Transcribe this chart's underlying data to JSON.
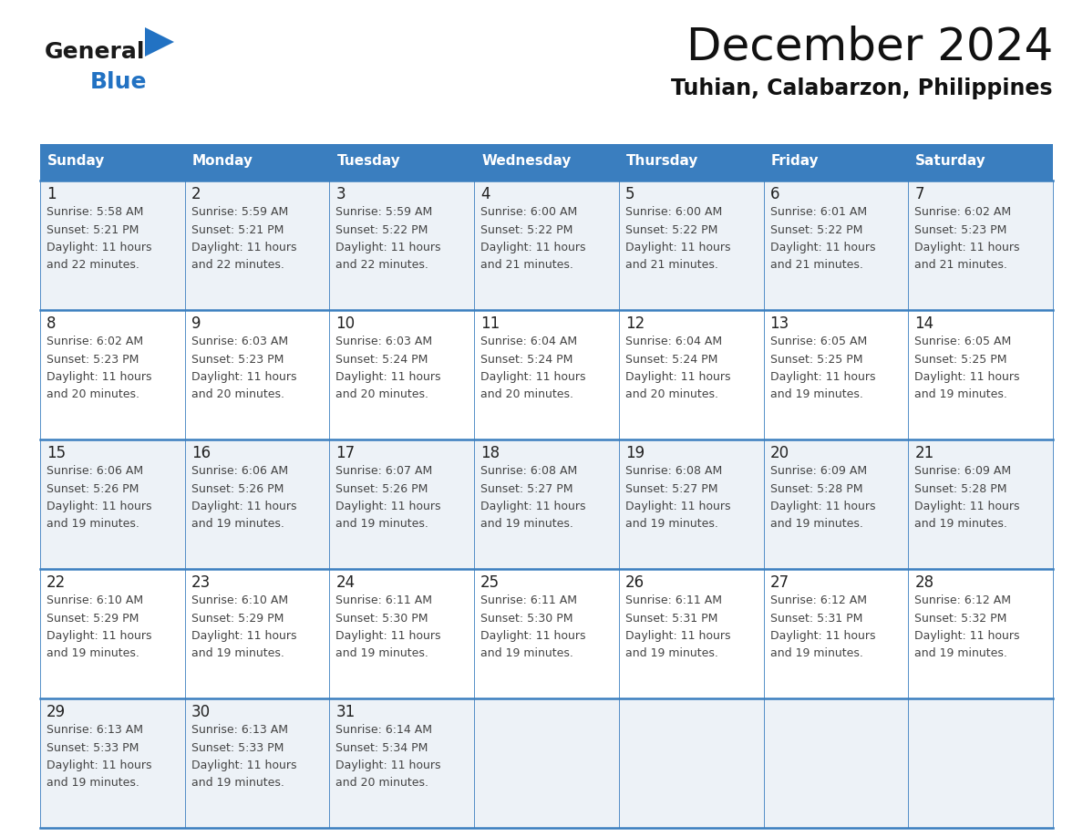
{
  "title": "December 2024",
  "subtitle": "Tuhian, Calabarzon, Philippines",
  "days_of_week": [
    "Sunday",
    "Monday",
    "Tuesday",
    "Wednesday",
    "Thursday",
    "Friday",
    "Saturday"
  ],
  "header_bg": "#3a7ebf",
  "header_text": "#ffffff",
  "row_bg_light": "#edf2f7",
  "row_bg_white": "#ffffff",
  "cell_border": "#3a7ebf",
  "day_number_color": "#222222",
  "cell_text_color": "#444444",
  "title_color": "#111111",
  "subtitle_color": "#111111",
  "logo_general_color": "#1a1a1a",
  "logo_blue_color": "#2272c3",
  "weeks": [
    [
      {
        "day": 1,
        "sunrise": "5:58 AM",
        "sunset": "5:21 PM",
        "daylight_h": "11 hours",
        "daylight_m": "and 22 minutes."
      },
      {
        "day": 2,
        "sunrise": "5:59 AM",
        "sunset": "5:21 PM",
        "daylight_h": "11 hours",
        "daylight_m": "and 22 minutes."
      },
      {
        "day": 3,
        "sunrise": "5:59 AM",
        "sunset": "5:22 PM",
        "daylight_h": "11 hours",
        "daylight_m": "and 22 minutes."
      },
      {
        "day": 4,
        "sunrise": "6:00 AM",
        "sunset": "5:22 PM",
        "daylight_h": "11 hours",
        "daylight_m": "and 21 minutes."
      },
      {
        "day": 5,
        "sunrise": "6:00 AM",
        "sunset": "5:22 PM",
        "daylight_h": "11 hours",
        "daylight_m": "and 21 minutes."
      },
      {
        "day": 6,
        "sunrise": "6:01 AM",
        "sunset": "5:22 PM",
        "daylight_h": "11 hours",
        "daylight_m": "and 21 minutes."
      },
      {
        "day": 7,
        "sunrise": "6:02 AM",
        "sunset": "5:23 PM",
        "daylight_h": "11 hours",
        "daylight_m": "and 21 minutes."
      }
    ],
    [
      {
        "day": 8,
        "sunrise": "6:02 AM",
        "sunset": "5:23 PM",
        "daylight_h": "11 hours",
        "daylight_m": "and 20 minutes."
      },
      {
        "day": 9,
        "sunrise": "6:03 AM",
        "sunset": "5:23 PM",
        "daylight_h": "11 hours",
        "daylight_m": "and 20 minutes."
      },
      {
        "day": 10,
        "sunrise": "6:03 AM",
        "sunset": "5:24 PM",
        "daylight_h": "11 hours",
        "daylight_m": "and 20 minutes."
      },
      {
        "day": 11,
        "sunrise": "6:04 AM",
        "sunset": "5:24 PM",
        "daylight_h": "11 hours",
        "daylight_m": "and 20 minutes."
      },
      {
        "day": 12,
        "sunrise": "6:04 AM",
        "sunset": "5:24 PM",
        "daylight_h": "11 hours",
        "daylight_m": "and 20 minutes."
      },
      {
        "day": 13,
        "sunrise": "6:05 AM",
        "sunset": "5:25 PM",
        "daylight_h": "11 hours",
        "daylight_m": "and 19 minutes."
      },
      {
        "day": 14,
        "sunrise": "6:05 AM",
        "sunset": "5:25 PM",
        "daylight_h": "11 hours",
        "daylight_m": "and 19 minutes."
      }
    ],
    [
      {
        "day": 15,
        "sunrise": "6:06 AM",
        "sunset": "5:26 PM",
        "daylight_h": "11 hours",
        "daylight_m": "and 19 minutes."
      },
      {
        "day": 16,
        "sunrise": "6:06 AM",
        "sunset": "5:26 PM",
        "daylight_h": "11 hours",
        "daylight_m": "and 19 minutes."
      },
      {
        "day": 17,
        "sunrise": "6:07 AM",
        "sunset": "5:26 PM",
        "daylight_h": "11 hours",
        "daylight_m": "and 19 minutes."
      },
      {
        "day": 18,
        "sunrise": "6:08 AM",
        "sunset": "5:27 PM",
        "daylight_h": "11 hours",
        "daylight_m": "and 19 minutes."
      },
      {
        "day": 19,
        "sunrise": "6:08 AM",
        "sunset": "5:27 PM",
        "daylight_h": "11 hours",
        "daylight_m": "and 19 minutes."
      },
      {
        "day": 20,
        "sunrise": "6:09 AM",
        "sunset": "5:28 PM",
        "daylight_h": "11 hours",
        "daylight_m": "and 19 minutes."
      },
      {
        "day": 21,
        "sunrise": "6:09 AM",
        "sunset": "5:28 PM",
        "daylight_h": "11 hours",
        "daylight_m": "and 19 minutes."
      }
    ],
    [
      {
        "day": 22,
        "sunrise": "6:10 AM",
        "sunset": "5:29 PM",
        "daylight_h": "11 hours",
        "daylight_m": "and 19 minutes."
      },
      {
        "day": 23,
        "sunrise": "6:10 AM",
        "sunset": "5:29 PM",
        "daylight_h": "11 hours",
        "daylight_m": "and 19 minutes."
      },
      {
        "day": 24,
        "sunrise": "6:11 AM",
        "sunset": "5:30 PM",
        "daylight_h": "11 hours",
        "daylight_m": "and 19 minutes."
      },
      {
        "day": 25,
        "sunrise": "6:11 AM",
        "sunset": "5:30 PM",
        "daylight_h": "11 hours",
        "daylight_m": "and 19 minutes."
      },
      {
        "day": 26,
        "sunrise": "6:11 AM",
        "sunset": "5:31 PM",
        "daylight_h": "11 hours",
        "daylight_m": "and 19 minutes."
      },
      {
        "day": 27,
        "sunrise": "6:12 AM",
        "sunset": "5:31 PM",
        "daylight_h": "11 hours",
        "daylight_m": "and 19 minutes."
      },
      {
        "day": 28,
        "sunrise": "6:12 AM",
        "sunset": "5:32 PM",
        "daylight_h": "11 hours",
        "daylight_m": "and 19 minutes."
      }
    ],
    [
      {
        "day": 29,
        "sunrise": "6:13 AM",
        "sunset": "5:33 PM",
        "daylight_h": "11 hours",
        "daylight_m": "and 19 minutes."
      },
      {
        "day": 30,
        "sunrise": "6:13 AM",
        "sunset": "5:33 PM",
        "daylight_h": "11 hours",
        "daylight_m": "and 19 minutes."
      },
      {
        "day": 31,
        "sunrise": "6:14 AM",
        "sunset": "5:34 PM",
        "daylight_h": "11 hours",
        "daylight_m": "and 20 minutes."
      },
      null,
      null,
      null,
      null
    ]
  ]
}
